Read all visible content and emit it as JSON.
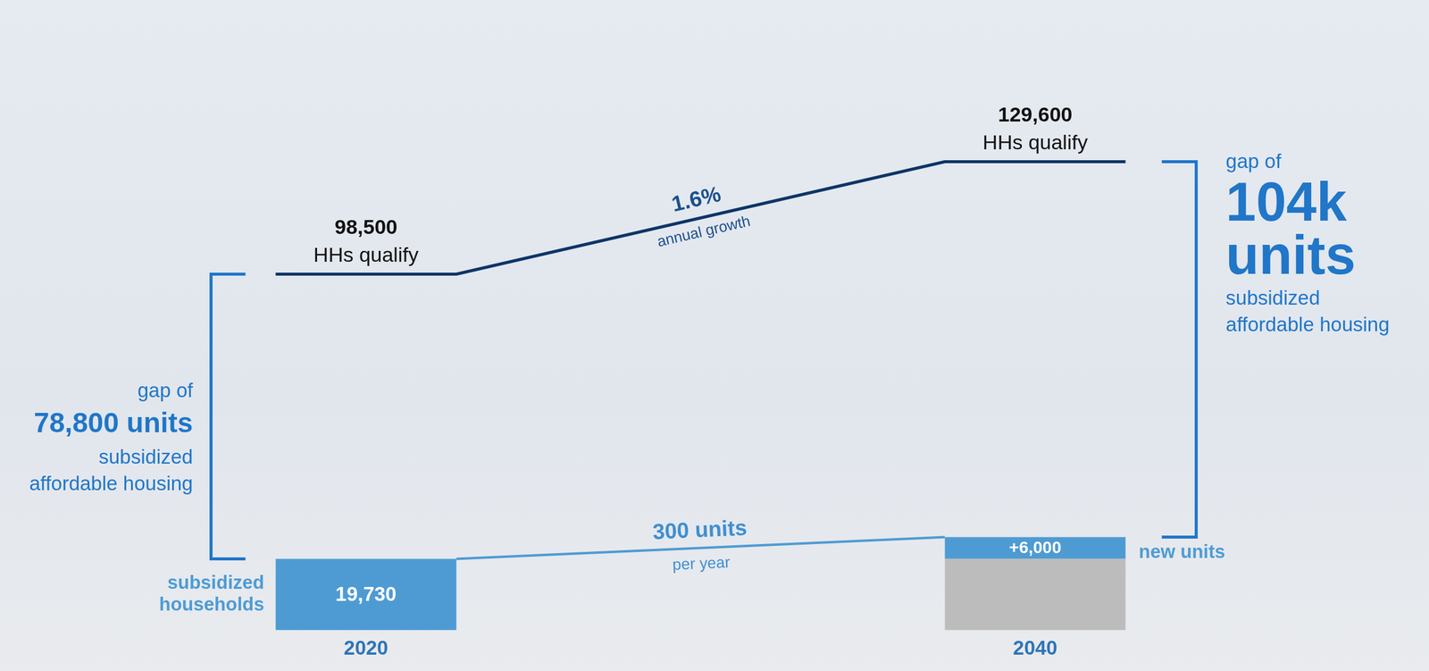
{
  "chart_data": {
    "type": "bar",
    "categories": [
      "2020",
      "2040"
    ],
    "ylim": [
      0,
      170000
    ],
    "stacked": true,
    "grid": false,
    "data_labels": true,
    "tick_labels": "x",
    "series": [
      {
        "name": "subsidized households",
        "type": "bar",
        "colors": [
          "#4e9bd3",
          "#bcbcbc"
        ],
        "values": [
          19730,
          19730
        ],
        "value_labels": [
          "19,730",
          null
        ]
      },
      {
        "name": "new units",
        "type": "bar",
        "color": "#4e9bd3",
        "values": [
          null,
          6000
        ],
        "value_labels": [
          null,
          "+6,000"
        ]
      },
      {
        "name": "HHs qualify",
        "type": "line",
        "color": "#0d3566",
        "values": [
          98500,
          129600
        ],
        "value_labels": [
          "98,500",
          "129,600"
        ]
      }
    ],
    "annotations": {
      "growth": {
        "value": "1.6%",
        "text": "annual growth"
      },
      "build_rate": {
        "value": "300 units",
        "text": "per year"
      },
      "gaps": [
        {
          "lead": "gap of",
          "value": "78,800 units",
          "text": "subsidized affordable housing"
        },
        {
          "lead": "gap of",
          "value": "104k units",
          "text": "subsidized affordable housing"
        }
      ]
    }
  }
}
